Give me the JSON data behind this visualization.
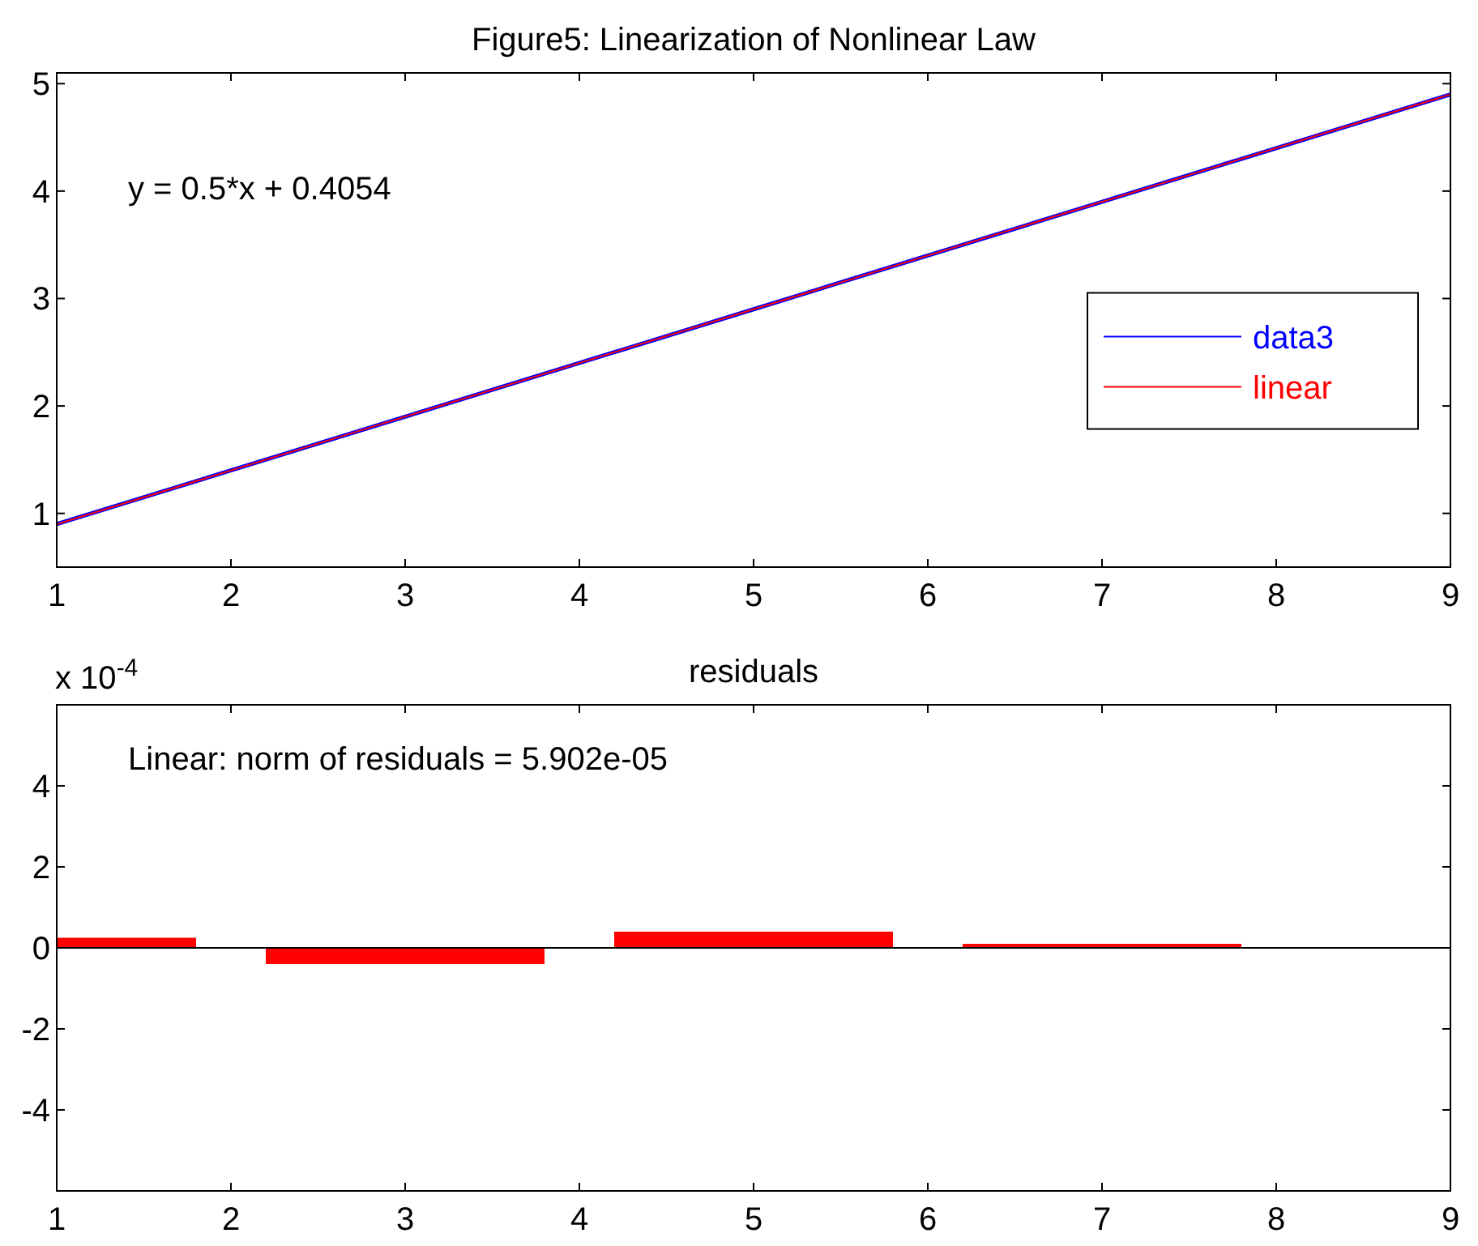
{
  "chart_data": [
    {
      "type": "line",
      "title": "Figure5: Linearization of Nonlinear Law",
      "xlim": [
        1,
        9
      ],
      "xticks": [
        1,
        2,
        3,
        4,
        5,
        6,
        7,
        8,
        9
      ],
      "ylim": [
        0.5,
        5.1
      ],
      "yticks": [
        1,
        2,
        3,
        4,
        5
      ],
      "grid": false,
      "legend": "right",
      "annotations": [
        "y = 0.5*x + 0.4054"
      ],
      "series": [
        {
          "name": "data3",
          "color": "#0000ff",
          "x": [
            1,
            3,
            5,
            7,
            9
          ],
          "values": [
            0.9,
            1.9,
            2.9,
            3.9,
            4.9
          ]
        },
        {
          "name": "linear",
          "color": "#ff0000",
          "x": [
            1,
            9
          ],
          "values": [
            0.9,
            4.9
          ]
        }
      ]
    },
    {
      "type": "bar",
      "title": "residuals",
      "xlim": [
        1,
        9
      ],
      "xticks": [
        1,
        2,
        3,
        4,
        5,
        6,
        7,
        8,
        9
      ],
      "ylim": [
        -6,
        6
      ],
      "yticks": [
        -4,
        -2,
        0,
        2,
        4
      ],
      "grid": false,
      "annotations": [
        "x 10$^{-4}$",
        "Linear: norm of residuals = 5.902e-05"
      ],
      "ref_lines": [
        {
          "axis": "y",
          "value": 0,
          "color": "#000000"
        }
      ],
      "series": [
        {
          "color": "#ff0000",
          "x": [
            1,
            3,
            5,
            7,
            9
          ],
          "values": [
            0.25,
            -0.4,
            0.4,
            0.1,
            0
          ]
        }
      ]
    }
  ]
}
